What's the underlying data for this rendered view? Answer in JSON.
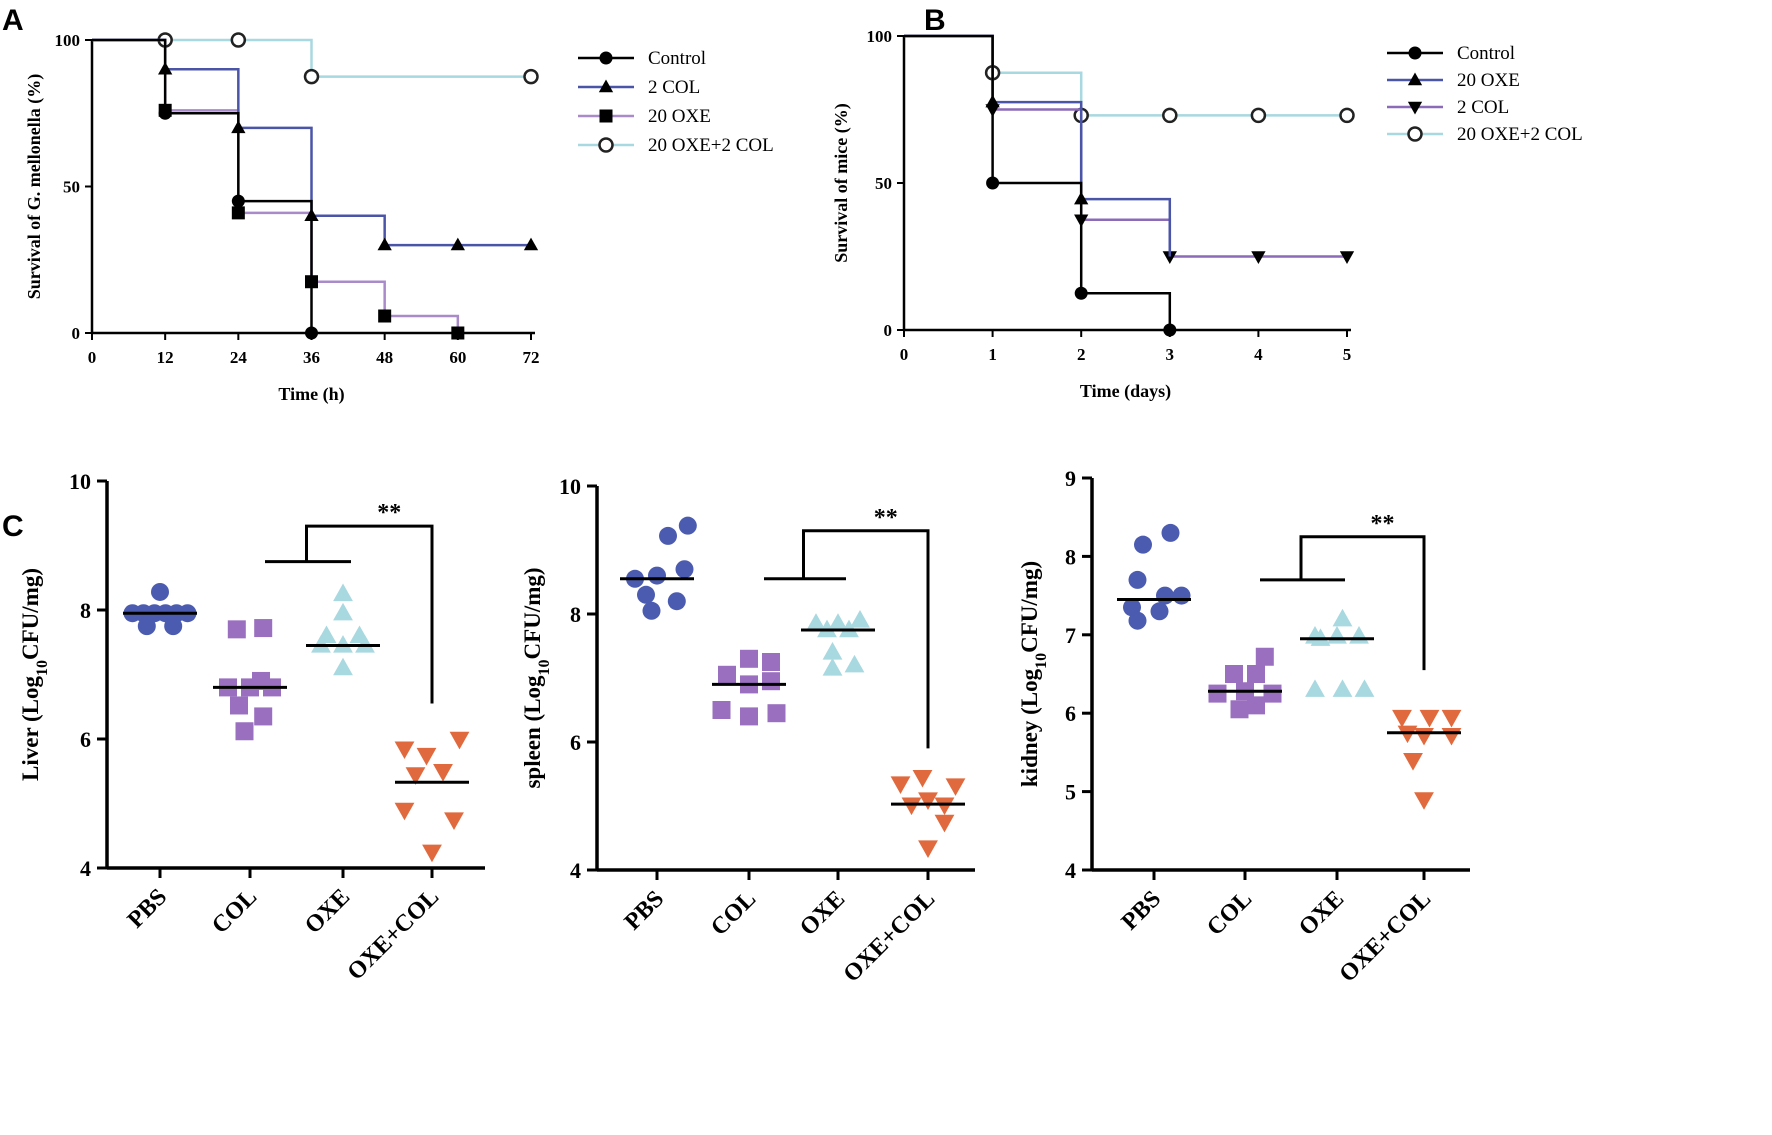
{
  "panels": {
    "a": "A",
    "b": "B",
    "c": "C"
  },
  "chart_data": [
    {
      "id": "A",
      "type": "line",
      "subtype": "kaplan-meier",
      "xlabel": "Time (h)",
      "ylabel": "Survival of G. mellonella (%)",
      "xlim": [
        0,
        72
      ],
      "ylim": [
        0,
        100
      ],
      "xticks": [
        0,
        12,
        24,
        36,
        48,
        60,
        72
      ],
      "yticks": [
        0,
        50,
        100
      ],
      "legend": "top-right",
      "series": [
        {
          "name": "Control",
          "color": "#000000",
          "marker": "circle",
          "steps": [
            [
              0,
              100
            ],
            [
              12,
              75
            ],
            [
              24,
              45
            ],
            [
              36,
              0
            ]
          ],
          "markers": [
            [
              12,
              75
            ],
            [
              24,
              45
            ],
            [
              36,
              0
            ]
          ]
        },
        {
          "name": "2 COL",
          "color": "#4b55a8",
          "marker": "triangle",
          "steps": [
            [
              0,
              100
            ],
            [
              12,
              90
            ],
            [
              24,
              70
            ],
            [
              36,
              40
            ],
            [
              48,
              30
            ],
            [
              72,
              30
            ]
          ],
          "markers": [
            [
              12,
              90
            ],
            [
              24,
              70
            ],
            [
              36,
              40
            ],
            [
              48,
              30
            ],
            [
              60,
              30
            ],
            [
              72,
              30
            ]
          ]
        },
        {
          "name": "20 OXE",
          "color": "#a98bc9",
          "marker": "square",
          "steps": [
            [
              0,
              100
            ],
            [
              12,
              76
            ],
            [
              24,
              41
            ],
            [
              36,
              17.5
            ],
            [
              48,
              5.8
            ],
            [
              60,
              0
            ]
          ],
          "markers": [
            [
              12,
              76
            ],
            [
              24,
              41
            ],
            [
              36,
              17.5
            ],
            [
              48,
              5.8
            ],
            [
              60,
              0
            ]
          ]
        },
        {
          "name": "20 OXE+2 COL",
          "color": "#a8d8e0",
          "marker": "open-circle",
          "steps": [
            [
              0,
              100
            ],
            [
              36,
              87.5
            ],
            [
              72,
              87.5
            ]
          ],
          "markers": [
            [
              12,
              100
            ],
            [
              24,
              100
            ],
            [
              36,
              87.5
            ],
            [
              72,
              87.5
            ]
          ]
        }
      ]
    },
    {
      "id": "B",
      "type": "line",
      "subtype": "kaplan-meier",
      "xlabel": "Time (days)",
      "ylabel": "Survival of mice (%)",
      "xlim": [
        0,
        5
      ],
      "ylim": [
        0,
        100
      ],
      "xticks": [
        0,
        1,
        2,
        3,
        4,
        5
      ],
      "yticks": [
        0,
        50,
        100
      ],
      "legend": "top-right",
      "series": [
        {
          "name": "Control",
          "color": "#000000",
          "marker": "circle",
          "steps": [
            [
              0,
              100
            ],
            [
              1,
              50
            ],
            [
              2,
              12.5
            ],
            [
              3,
              0
            ]
          ],
          "markers": [
            [
              1,
              50
            ],
            [
              2,
              12.5
            ],
            [
              3,
              0
            ]
          ]
        },
        {
          "name": "20 OXE",
          "color": "#4b55a8",
          "marker": "triangle",
          "steps": [
            [
              0,
              100
            ],
            [
              1,
              77.5
            ],
            [
              2,
              44.5
            ],
            [
              3,
              25
            ]
          ],
          "markers": [
            [
              1,
              77.5
            ],
            [
              2,
              44.5
            ]
          ]
        },
        {
          "name": "2 COL",
          "color": "#8b6ab8",
          "marker": "triangle-down",
          "steps": [
            [
              0,
              100
            ],
            [
              1,
              75
            ],
            [
              2,
              37.5
            ],
            [
              3,
              25
            ],
            [
              5,
              25
            ]
          ],
          "markers": [
            [
              1,
              75
            ],
            [
              2,
              37.5
            ],
            [
              3,
              25
            ],
            [
              4,
              25
            ],
            [
              5,
              25
            ]
          ]
        },
        {
          "name": "20 OXE+2 COL",
          "color": "#a8d8e0",
          "marker": "open-circle",
          "steps": [
            [
              0,
              100
            ],
            [
              1,
              87.5
            ],
            [
              2,
              73
            ],
            [
              5,
              73
            ]
          ],
          "markers": [
            [
              1,
              87.5
            ],
            [
              2,
              73
            ],
            [
              3,
              73
            ],
            [
              4,
              73
            ],
            [
              5,
              73
            ]
          ]
        }
      ]
    },
    {
      "id": "C-liver",
      "type": "scatter",
      "subtype": "dot-plot",
      "ylabel_main": "Liver (Log",
      "ylabel_sub": "10",
      "ylabel_end": "CFU/mg)",
      "ylim": [
        4,
        10
      ],
      "yticks": [
        4,
        6,
        8,
        10
      ],
      "categories": [
        "PBS",
        "COL",
        "OXE",
        "OXE+COL"
      ],
      "significance": "**",
      "groups": [
        {
          "name": "PBS",
          "color": "#4b5bb0",
          "marker": "circle",
          "median": 7.95,
          "points": [
            [
              -0.25,
              7.95
            ],
            [
              -0.15,
              7.95
            ],
            [
              -0.05,
              7.95
            ],
            [
              0.05,
              7.95
            ],
            [
              0.15,
              7.95
            ],
            [
              0.25,
              7.95
            ],
            [
              0.0,
              8.28
            ],
            [
              -0.12,
              7.75
            ],
            [
              0.12,
              7.75
            ]
          ]
        },
        {
          "name": "COL",
          "color": "#9a6fbf",
          "marker": "square",
          "median": 6.8,
          "points": [
            [
              -0.12,
              7.7
            ],
            [
              0.12,
              7.72
            ],
            [
              -0.2,
              6.8
            ],
            [
              0.0,
              6.8
            ],
            [
              0.2,
              6.8
            ],
            [
              0.1,
              6.9
            ],
            [
              -0.1,
              6.52
            ],
            [
              0.12,
              6.35
            ],
            [
              -0.05,
              6.12
            ]
          ]
        },
        {
          "name": "OXE",
          "color": "#a8d8e0",
          "marker": "triangle",
          "median": 7.45,
          "points": [
            [
              0.0,
              8.25
            ],
            [
              0.0,
              7.95
            ],
            [
              -0.15,
              7.6
            ],
            [
              0.15,
              7.6
            ],
            [
              -0.2,
              7.45
            ],
            [
              0.0,
              7.45
            ],
            [
              0.2,
              7.45
            ],
            [
              0.0,
              7.1
            ]
          ]
        },
        {
          "name": "OXE+COL",
          "color": "#e06a3e",
          "marker": "triangle-down",
          "median": 5.33,
          "points": [
            [
              -0.25,
              5.85
            ],
            [
              0.25,
              6.0
            ],
            [
              -0.05,
              5.75
            ],
            [
              -0.15,
              5.45
            ],
            [
              0.1,
              5.5
            ],
            [
              -0.25,
              4.9
            ],
            [
              0.2,
              4.75
            ],
            [
              0.0,
              4.25
            ]
          ]
        }
      ]
    },
    {
      "id": "C-spleen",
      "type": "scatter",
      "subtype": "dot-plot",
      "ylabel_main": "spleen (Log",
      "ylabel_sub": "10",
      "ylabel_end": "CFU/mg)",
      "ylim": [
        4,
        10
      ],
      "yticks": [
        4,
        6,
        8,
        10
      ],
      "categories": [
        "PBS",
        "COL",
        "OXE",
        "OXE+COL"
      ],
      "significance": "**",
      "groups": [
        {
          "name": "PBS",
          "color": "#4b5bb0",
          "marker": "circle",
          "median": 8.55,
          "points": [
            [
              0.1,
              9.22
            ],
            [
              0.28,
              9.38
            ],
            [
              -0.2,
              8.55
            ],
            [
              0.0,
              8.6
            ],
            [
              0.25,
              8.7
            ],
            [
              -0.1,
              8.3
            ],
            [
              0.18,
              8.2
            ],
            [
              -0.05,
              8.05
            ]
          ]
        },
        {
          "name": "COL",
          "color": "#9a6fbf",
          "marker": "square",
          "median": 6.9,
          "points": [
            [
              0.0,
              7.3
            ],
            [
              0.2,
              7.25
            ],
            [
              -0.2,
              7.05
            ],
            [
              0.0,
              6.9
            ],
            [
              0.2,
              6.95
            ],
            [
              -0.25,
              6.5
            ],
            [
              0.0,
              6.4
            ],
            [
              0.25,
              6.45
            ]
          ]
        },
        {
          "name": "OXE",
          "color": "#a8d8e0",
          "marker": "triangle",
          "median": 7.75,
          "points": [
            [
              -0.2,
              7.85
            ],
            [
              0.0,
              7.85
            ],
            [
              0.2,
              7.9
            ],
            [
              0.1,
              7.75
            ],
            [
              -0.1,
              7.75
            ],
            [
              -0.05,
              7.4
            ],
            [
              -0.05,
              7.15
            ],
            [
              0.15,
              7.2
            ]
          ]
        },
        {
          "name": "OXE+COL",
          "color": "#e06a3e",
          "marker": "triangle-down",
          "median": 5.03,
          "points": [
            [
              -0.05,
              5.45
            ],
            [
              0.25,
              5.32
            ],
            [
              -0.25,
              5.35
            ],
            [
              0.0,
              5.1
            ],
            [
              0.15,
              5.02
            ],
            [
              -0.15,
              5.02
            ],
            [
              0.15,
              4.75
            ],
            [
              0.0,
              4.35
            ]
          ]
        }
      ]
    },
    {
      "id": "C-kidney",
      "type": "scatter",
      "subtype": "dot-plot",
      "ylabel_main": "kidney (Log",
      "ylabel_sub": "10",
      "ylabel_end": "CFU/mg)",
      "ylim": [
        4,
        9
      ],
      "yticks": [
        4,
        5,
        6,
        7,
        8,
        9
      ],
      "categories": [
        "PBS",
        "COL",
        "OXE",
        "OXE+COL"
      ],
      "significance": "**",
      "groups": [
        {
          "name": "PBS",
          "color": "#4b5bb0",
          "marker": "circle",
          "median": 7.45,
          "points": [
            [
              -0.1,
              8.15
            ],
            [
              0.15,
              8.3
            ],
            [
              -0.15,
              7.7
            ],
            [
              0.1,
              7.5
            ],
            [
              0.25,
              7.5
            ],
            [
              -0.2,
              7.35
            ],
            [
              -0.15,
              7.18
            ],
            [
              0.05,
              7.3
            ]
          ]
        },
        {
          "name": "COL",
          "color": "#9a6fbf",
          "marker": "square",
          "median": 6.28,
          "points": [
            [
              0.18,
              6.72
            ],
            [
              -0.1,
              6.5
            ],
            [
              0.1,
              6.5
            ],
            [
              -0.25,
              6.25
            ],
            [
              0.0,
              6.28
            ],
            [
              0.25,
              6.25
            ],
            [
              -0.05,
              6.05
            ],
            [
              0.1,
              6.1
            ]
          ]
        },
        {
          "name": "OXE",
          "color": "#a8d8e0",
          "marker": "triangle",
          "median": 6.95,
          "points": [
            [
              0.05,
              7.2
            ],
            [
              -0.2,
              6.98
            ],
            [
              0.0,
              6.98
            ],
            [
              0.2,
              6.98
            ],
            [
              -0.15,
              6.95
            ],
            [
              -0.2,
              6.3
            ],
            [
              0.05,
              6.3
            ],
            [
              0.25,
              6.3
            ]
          ]
        },
        {
          "name": "OXE+COL",
          "color": "#e06a3e",
          "marker": "triangle-down",
          "median": 5.75,
          "points": [
            [
              -0.2,
              5.95
            ],
            [
              0.05,
              5.95
            ],
            [
              0.25,
              5.95
            ],
            [
              -0.15,
              5.75
            ],
            [
              0.0,
              5.72
            ],
            [
              0.25,
              5.72
            ],
            [
              -0.1,
              5.4
            ],
            [
              0.0,
              4.9
            ]
          ]
        }
      ]
    }
  ]
}
